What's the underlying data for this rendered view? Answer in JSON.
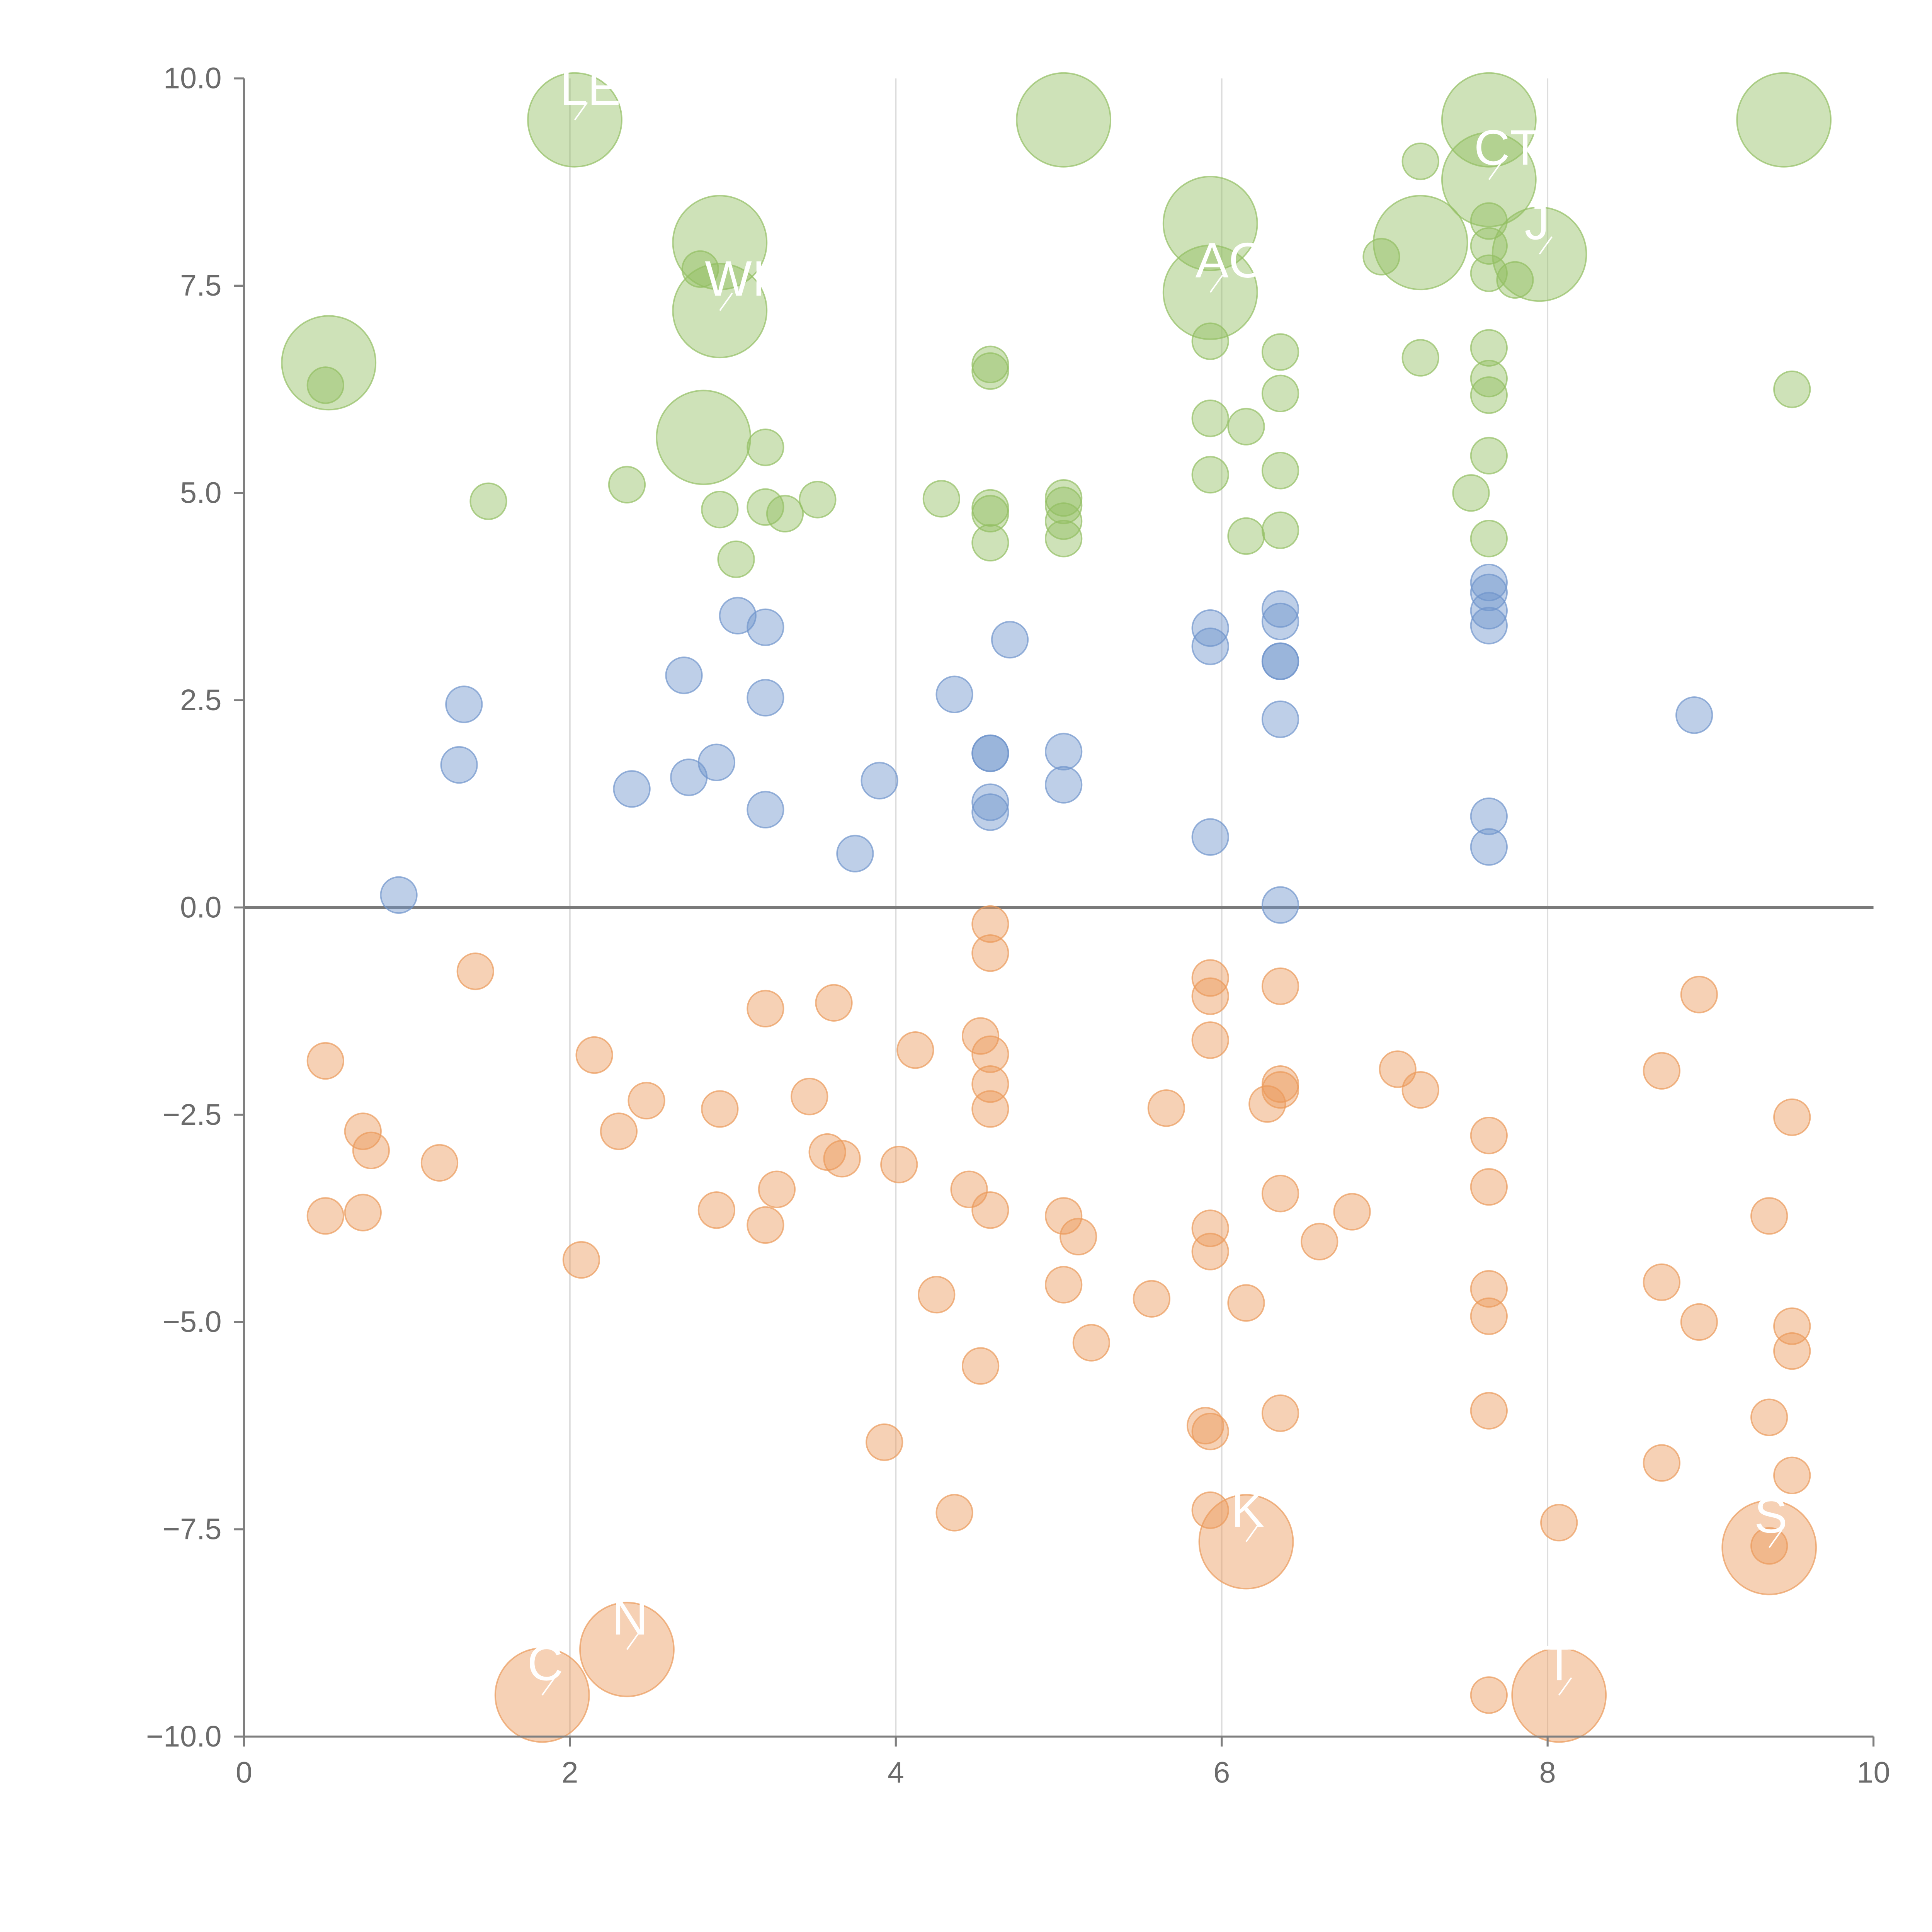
{
  "chart_data": {
    "type": "scatter",
    "title": "",
    "xlabel": "",
    "ylabel": "",
    "xlim": [
      0,
      10
    ],
    "ylim": [
      -10,
      10
    ],
    "x_ticks": [
      0,
      2,
      4,
      6,
      8,
      10
    ],
    "x_tick_labels": [
      "0",
      "2",
      "4",
      "6",
      "8",
      "10"
    ],
    "y_ticks": [
      -10,
      -7.5,
      -5,
      -2.5,
      0,
      2.5,
      5,
      7.5,
      10
    ],
    "y_tick_labels": [
      "−10.0",
      "−7.5",
      "−5.0",
      "−2.5",
      "0.0",
      "2.5",
      "5.0",
      "7.5",
      "10.0"
    ],
    "vertical_gridlines_at": [
      2,
      4,
      6,
      8
    ],
    "zero_line": 0,
    "colors": {
      "green": "#93bf62",
      "blue": "#6f94cc",
      "orange": "#eb9a5a",
      "axis": "#7f7f7f",
      "tick_text": "#6b6b6b",
      "grid": "#dddddd",
      "zero_line": "#7a7a7a",
      "label_text": "#ffffff"
    },
    "series": [
      {
        "color_key": "green",
        "points": [
          [
            0.5,
            6.3,
            1
          ],
          [
            1.5,
            4.9,
            1
          ],
          [
            2.35,
            5.1,
            1
          ],
          [
            2.8,
            7.7,
            1
          ],
          [
            2.92,
            4.8,
            1
          ],
          [
            3.02,
            4.2,
            1
          ],
          [
            3.2,
            5.55,
            1
          ],
          [
            3.2,
            4.83,
            1
          ],
          [
            3.32,
            4.75,
            1
          ],
          [
            3.52,
            4.92,
            1
          ],
          [
            4.28,
            4.93,
            1
          ],
          [
            4.58,
            6.55,
            1
          ],
          [
            4.58,
            6.47,
            1
          ],
          [
            4.58,
            4.82,
            1
          ],
          [
            4.58,
            4.75,
            1
          ],
          [
            4.58,
            4.4,
            1
          ],
          [
            5.03,
            4.94,
            1
          ],
          [
            5.03,
            4.85,
            1
          ],
          [
            5.03,
            4.66,
            1
          ],
          [
            5.03,
            4.45,
            1
          ],
          [
            5.93,
            6.83,
            1
          ],
          [
            5.93,
            5.9,
            1
          ],
          [
            5.93,
            5.22,
            1
          ],
          [
            6.15,
            5.8,
            1
          ],
          [
            6.15,
            4.48,
            1
          ],
          [
            6.36,
            6.7,
            1
          ],
          [
            6.36,
            6.2,
            1
          ],
          [
            6.36,
            5.27,
            1
          ],
          [
            6.36,
            4.55,
            1
          ],
          [
            6.98,
            7.85,
            1
          ],
          [
            7.22,
            9.0,
            1
          ],
          [
            7.22,
            6.63,
            1
          ],
          [
            7.53,
            5.0,
            1
          ],
          [
            7.64,
            8.28,
            1
          ],
          [
            7.64,
            7.98,
            1
          ],
          [
            7.64,
            7.65,
            1
          ],
          [
            7.64,
            6.75,
            1
          ],
          [
            7.64,
            6.38,
            1
          ],
          [
            7.64,
            6.18,
            1
          ],
          [
            7.64,
            5.45,
            1
          ],
          [
            7.64,
            4.45,
            1
          ],
          [
            7.8,
            7.57,
            1
          ],
          [
            9.5,
            6.25,
            1
          ],
          [
            0.52,
            6.57,
            2.6
          ],
          [
            2.03,
            9.5,
            2.6
          ],
          [
            2.92,
            8.02,
            2.6
          ],
          [
            2.92,
            7.2,
            2.6
          ],
          [
            2.82,
            5.67,
            2.6
          ],
          [
            5.03,
            9.5,
            2.6
          ],
          [
            5.93,
            8.25,
            2.6
          ],
          [
            5.93,
            7.42,
            2.6
          ],
          [
            7.22,
            8.02,
            2.6
          ],
          [
            7.64,
            9.5,
            2.6
          ],
          [
            7.64,
            8.78,
            2.6
          ],
          [
            7.95,
            7.88,
            2.6
          ],
          [
            9.45,
            9.5,
            2.6
          ]
        ]
      },
      {
        "color_key": "blue",
        "points": [
          [
            0.95,
            0.15,
            1
          ],
          [
            1.32,
            1.72,
            1
          ],
          [
            1.35,
            2.45,
            1
          ],
          [
            2.38,
            1.43,
            1
          ],
          [
            2.7,
            2.8,
            1
          ],
          [
            2.73,
            1.57,
            1
          ],
          [
            2.9,
            1.75,
            1
          ],
          [
            3.03,
            3.52,
            1
          ],
          [
            3.2,
            3.38,
            1
          ],
          [
            3.2,
            2.53,
            1
          ],
          [
            3.2,
            1.18,
            1
          ],
          [
            3.75,
            0.65,
            1
          ],
          [
            3.9,
            1.53,
            1
          ],
          [
            4.36,
            2.57,
            1
          ],
          [
            4.58,
            1.86,
            1
          ],
          [
            4.58,
            1.86,
            1
          ],
          [
            4.58,
            1.27,
            1
          ],
          [
            4.58,
            1.15,
            1
          ],
          [
            4.7,
            3.23,
            1
          ],
          [
            5.03,
            1.88,
            1
          ],
          [
            5.03,
            1.48,
            1
          ],
          [
            5.93,
            3.37,
            1
          ],
          [
            5.93,
            3.15,
            1
          ],
          [
            5.93,
            0.85,
            1
          ],
          [
            6.36,
            3.6,
            1
          ],
          [
            6.36,
            3.45,
            1
          ],
          [
            6.36,
            2.97,
            1
          ],
          [
            6.36,
            2.97,
            1
          ],
          [
            6.36,
            2.27,
            1
          ],
          [
            6.36,
            0.03,
            1
          ],
          [
            7.64,
            3.92,
            1
          ],
          [
            7.64,
            3.8,
            1
          ],
          [
            7.64,
            3.58,
            1
          ],
          [
            7.64,
            3.4,
            1
          ],
          [
            7.64,
            1.1,
            1
          ],
          [
            7.64,
            0.73,
            1
          ],
          [
            8.9,
            2.32,
            1
          ]
        ]
      },
      {
        "color_key": "orange",
        "points": [
          [
            0.5,
            -1.85,
            1
          ],
          [
            0.5,
            -3.72,
            1
          ],
          [
            0.73,
            -2.7,
            1
          ],
          [
            0.73,
            -3.68,
            1
          ],
          [
            0.78,
            -2.93,
            1
          ],
          [
            1.2,
            -3.08,
            1
          ],
          [
            1.42,
            -0.77,
            1
          ],
          [
            2.07,
            -4.25,
            1
          ],
          [
            2.15,
            -1.78,
            1
          ],
          [
            2.3,
            -2.7,
            1
          ],
          [
            2.47,
            -2.33,
            1
          ],
          [
            2.9,
            -3.65,
            1
          ],
          [
            2.92,
            -2.43,
            1
          ],
          [
            3.2,
            -1.22,
            1
          ],
          [
            3.2,
            -3.83,
            1
          ],
          [
            3.27,
            -3.4,
            1
          ],
          [
            3.47,
            -2.28,
            1
          ],
          [
            3.58,
            -2.95,
            1
          ],
          [
            3.62,
            -1.15,
            1
          ],
          [
            3.67,
            -3.03,
            1
          ],
          [
            3.93,
            -6.45,
            1
          ],
          [
            4.02,
            -3.1,
            1
          ],
          [
            4.12,
            -1.72,
            1
          ],
          [
            4.25,
            -4.67,
            1
          ],
          [
            4.36,
            -7.3,
            1
          ],
          [
            4.45,
            -3.4,
            1
          ],
          [
            4.52,
            -1.55,
            1
          ],
          [
            4.52,
            -5.53,
            1
          ],
          [
            4.58,
            -0.2,
            1
          ],
          [
            4.58,
            -0.55,
            1
          ],
          [
            4.58,
            -1.77,
            1
          ],
          [
            4.58,
            -2.13,
            1
          ],
          [
            4.58,
            -2.43,
            1
          ],
          [
            4.58,
            -3.65,
            1
          ],
          [
            5.03,
            -3.72,
            1
          ],
          [
            5.03,
            -4.55,
            1
          ],
          [
            5.12,
            -3.97,
            1
          ],
          [
            5.2,
            -5.25,
            1
          ],
          [
            5.57,
            -4.72,
            1
          ],
          [
            5.66,
            -2.42,
            1
          ],
          [
            5.9,
            -6.25,
            1
          ],
          [
            5.93,
            -0.85,
            1
          ],
          [
            5.93,
            -1.07,
            1
          ],
          [
            5.93,
            -1.6,
            1
          ],
          [
            5.93,
            -3.87,
            1
          ],
          [
            5.93,
            -4.15,
            1
          ],
          [
            5.93,
            -6.32,
            1
          ],
          [
            5.93,
            -7.27,
            1
          ],
          [
            6.15,
            -4.77,
            1
          ],
          [
            6.28,
            -2.37,
            1
          ],
          [
            6.36,
            -0.95,
            1
          ],
          [
            6.36,
            -2.13,
            1
          ],
          [
            6.36,
            -2.2,
            1
          ],
          [
            6.36,
            -3.45,
            1
          ],
          [
            6.36,
            -6.1,
            1
          ],
          [
            6.6,
            -4.03,
            1
          ],
          [
            6.8,
            -3.67,
            1
          ],
          [
            7.08,
            -1.95,
            1
          ],
          [
            7.22,
            -2.2,
            1
          ],
          [
            7.64,
            -2.75,
            1
          ],
          [
            7.64,
            -3.37,
            1
          ],
          [
            7.64,
            -4.6,
            1
          ],
          [
            7.64,
            -4.93,
            1
          ],
          [
            7.64,
            -6.07,
            1
          ],
          [
            7.64,
            -9.5,
            1
          ],
          [
            8.07,
            -7.42,
            1
          ],
          [
            8.7,
            -1.97,
            1
          ],
          [
            8.7,
            -4.52,
            1
          ],
          [
            8.7,
            -6.7,
            1
          ],
          [
            8.93,
            -1.05,
            1
          ],
          [
            8.93,
            -5.0,
            1
          ],
          [
            9.36,
            -3.72,
            1
          ],
          [
            9.36,
            -6.15,
            1
          ],
          [
            9.36,
            -7.7,
            1
          ],
          [
            9.5,
            -2.53,
            1
          ],
          [
            9.5,
            -5.05,
            1
          ],
          [
            9.5,
            -5.35,
            1
          ],
          [
            9.5,
            -6.85,
            1
          ],
          [
            1.83,
            -9.5,
            2.6
          ],
          [
            2.35,
            -8.95,
            2.6
          ],
          [
            6.15,
            -7.65,
            2.6
          ],
          [
            8.07,
            -9.5,
            2.6
          ],
          [
            9.36,
            -7.72,
            2.6
          ]
        ]
      }
    ],
    "annotations": [
      {
        "text": "LE",
        "x": 2.03,
        "y": 9.5
      },
      {
        "text": "WIN",
        "x": 2.92,
        "y": 7.2
      },
      {
        "text": "CT",
        "x": 7.64,
        "y": 8.78
      },
      {
        "text": "AC",
        "x": 5.93,
        "y": 7.42
      },
      {
        "text": "J",
        "x": 7.95,
        "y": 7.88
      },
      {
        "text": "K",
        "x": 6.15,
        "y": -7.65
      },
      {
        "text": "S",
        "x": 9.36,
        "y": -7.72
      },
      {
        "text": "N",
        "x": 2.35,
        "y": -8.95
      },
      {
        "text": "C",
        "x": 1.83,
        "y": -9.5
      },
      {
        "text": "T",
        "x": 8.07,
        "y": -9.5
      }
    ]
  }
}
